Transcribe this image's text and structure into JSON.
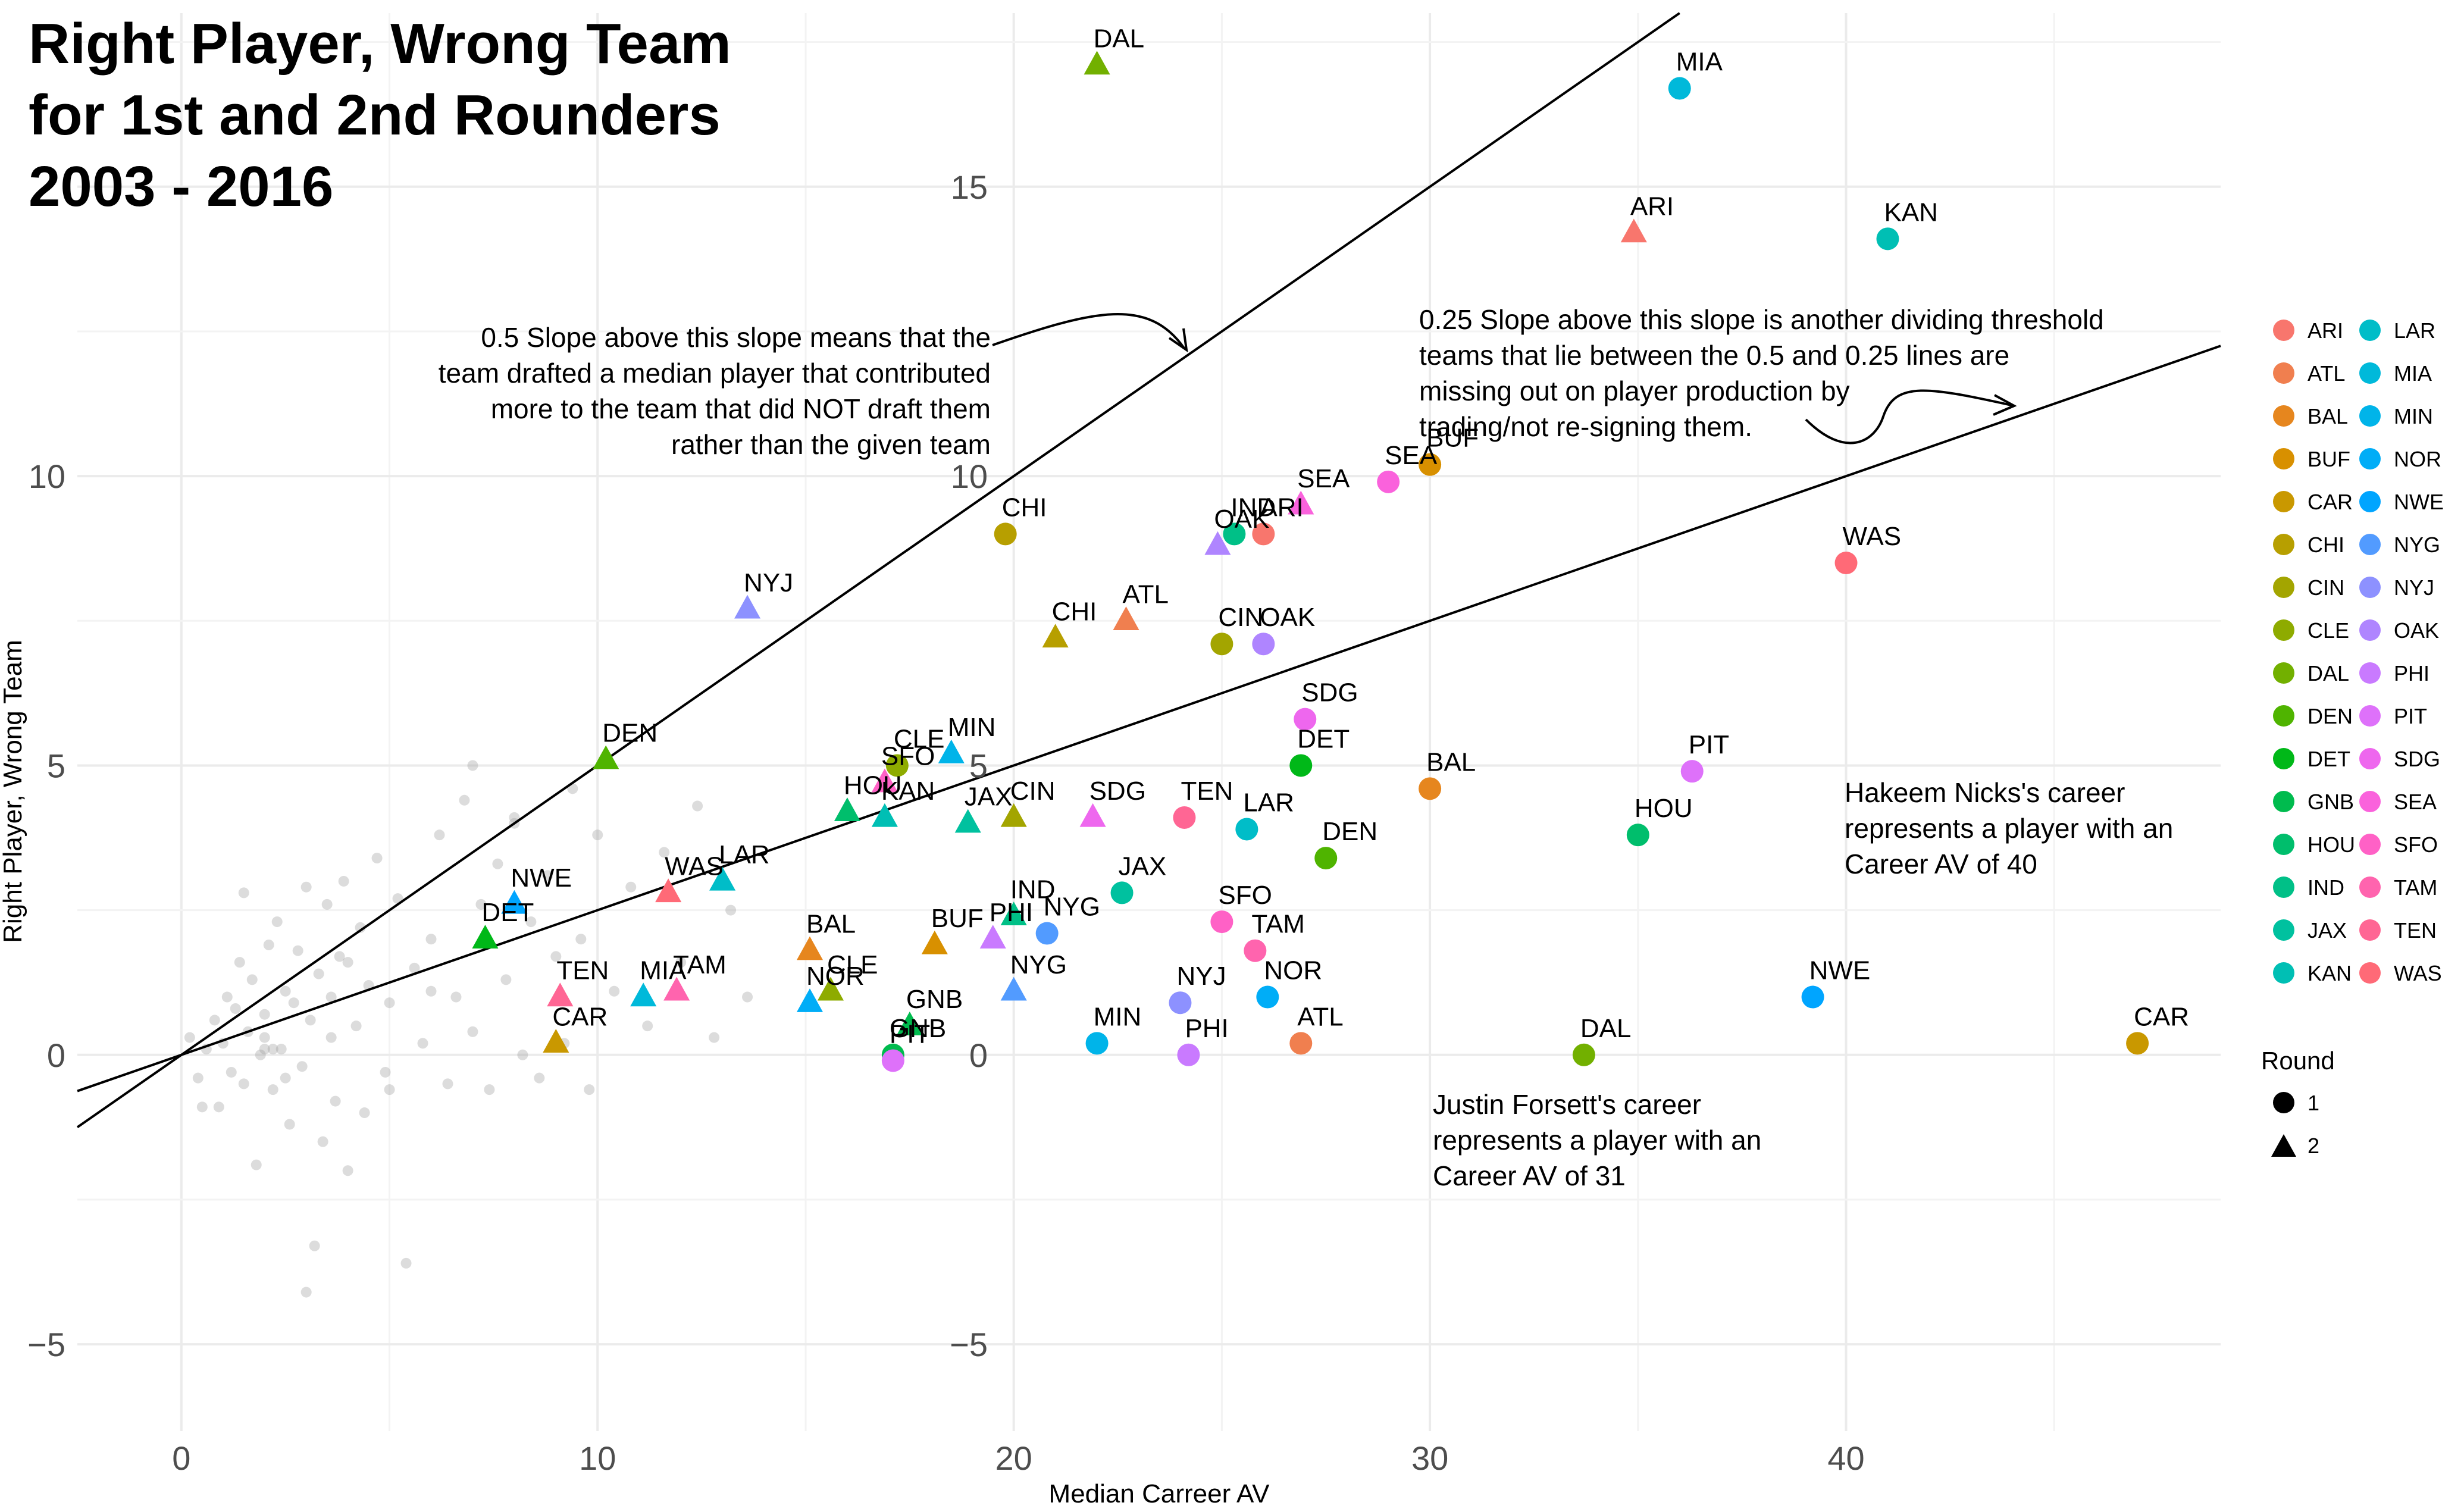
{
  "chart_data": {
    "type": "scatter",
    "title": [
      "Right Player, Wrong Team",
      "for 1st and 2nd Rounders",
      "2003 - 2016"
    ],
    "xlabel": "Median Carreer AV",
    "ylabel": "Right Player, Wrong Team",
    "xlim": [
      -2.5,
      49
    ],
    "ylim": [
      -6.5,
      18
    ],
    "x_ticks": [
      0,
      10,
      20,
      30,
      40
    ],
    "y_ticks": [
      -5,
      0,
      5,
      10,
      15
    ],
    "grid": true,
    "reference_lines": [
      {
        "slope": 0.5,
        "intercept": 0
      },
      {
        "slope": 0.25,
        "intercept": 0
      }
    ],
    "annotations": [
      {
        "lines": [
          "0.5 Slope above this slope means that the",
          "team drafted a median player that contributed",
          "more to the team that did NOT draft them",
          "rather than the given team"
        ]
      },
      {
        "lines": [
          "0.25 Slope above this slope is another dividing threshold",
          "teams that lie between the 0.5 and 0.25 lines are",
          "missing out on player production by",
          "trading/not re-signing them."
        ]
      },
      {
        "lines": [
          "Hakeem Nicks's career",
          "represents a player with an",
          "Career AV of 40"
        ]
      },
      {
        "lines": [
          "Justin Forsett's career",
          "represents a player with an",
          "Career AV of 31"
        ]
      }
    ],
    "team_colors": {
      "ARI": "#F8766D",
      "ATL": "#F07F4F",
      "BAL": "#E6861E",
      "BUF": "#D89000",
      "CAR": "#C99800",
      "CHI": "#B79F00",
      "CIN": "#A3A500",
      "CLE": "#8EAB00",
      "DAL": "#72B000",
      "DEN": "#4FB400",
      "DET": "#00B818",
      "GNB": "#00BB4E",
      "HOU": "#00BE6C",
      "IND": "#00C087",
      "JAX": "#00C19F",
      "KAN": "#00BFB4",
      "LAR": "#00BDC8",
      "MIA": "#00B9DA",
      "MIN": "#00B4E9",
      "NOR": "#00ADF7",
      "NWE": "#00A5FF",
      "NYG": "#529BFF",
      "NYJ": "#8D91FF",
      "OAK": "#AF85FF",
      "PHI": "#C97AFF",
      "PIT": "#DE71FA",
      "SDG": "#EE67EE",
      "SEA": "#FA62DC",
      "SFO": "#FF61C6",
      "TAM": "#FF64AE",
      "TEN": "#FF6694",
      "WAS": "#FF6A77"
    },
    "legend": {
      "teams": [
        "ARI",
        "ATL",
        "BAL",
        "BUF",
        "CAR",
        "CHI",
        "CIN",
        "CLE",
        "DAL",
        "DEN",
        "DET",
        "GNB",
        "HOU",
        "IND",
        "JAX",
        "KAN",
        "LAR",
        "MIA",
        "MIN",
        "NOR",
        "NWE",
        "NYG",
        "NYJ",
        "OAK",
        "PHI",
        "PIT",
        "SDG",
        "SEA",
        "SFO",
        "TAM",
        "TEN",
        "WAS"
      ],
      "round_title": "Round",
      "rounds": [
        {
          "label": "1",
          "shape": "circle"
        },
        {
          "label": "2",
          "shape": "triangle"
        }
      ]
    },
    "points": [
      {
        "team": "MIA",
        "round": 1,
        "x": 36.0,
        "y": 16.7
      },
      {
        "team": "DAL",
        "round": 2,
        "x": 22.0,
        "y": 17.1
      },
      {
        "team": "ARI",
        "round": 2,
        "x": 34.9,
        "y": 14.2
      },
      {
        "team": "KAN",
        "round": 1,
        "x": 41.0,
        "y": 14.1
      },
      {
        "team": "SEA",
        "round": 1,
        "x": 29.0,
        "y": 9.9
      },
      {
        "team": "BUF",
        "round": 1,
        "x": 30.0,
        "y": 10.2
      },
      {
        "team": "SEA",
        "round": 2,
        "x": 26.9,
        "y": 9.5
      },
      {
        "team": "IND",
        "round": 1,
        "x": 25.3,
        "y": 9.0
      },
      {
        "team": "ARI",
        "round": 1,
        "x": 26.0,
        "y": 9.0
      },
      {
        "team": "OAK",
        "round": 2,
        "x": 24.9,
        "y": 8.8
      },
      {
        "team": "CHI",
        "round": 1,
        "x": 19.8,
        "y": 9.0
      },
      {
        "team": "NYJ",
        "round": 2,
        "x": 13.6,
        "y": 7.7
      },
      {
        "team": "WAS",
        "round": 1,
        "x": 40.0,
        "y": 8.5
      },
      {
        "team": "ATL",
        "round": 2,
        "x": 22.7,
        "y": 7.5
      },
      {
        "team": "CHI",
        "round": 2,
        "x": 21.0,
        "y": 7.2
      },
      {
        "team": "CIN",
        "round": 1,
        "x": 25.0,
        "y": 7.1
      },
      {
        "team": "OAK",
        "round": 1,
        "x": 26.0,
        "y": 7.1
      },
      {
        "team": "SDG",
        "round": 1,
        "x": 27.0,
        "y": 5.8
      },
      {
        "team": "DEN",
        "round": 2,
        "x": 10.2,
        "y": 5.1
      },
      {
        "team": "CLE",
        "round": 1,
        "x": 17.2,
        "y": 5.0
      },
      {
        "team": "MIN",
        "round": 2,
        "x": 18.5,
        "y": 5.2
      },
      {
        "team": "SFO",
        "round": 2,
        "x": 16.9,
        "y": 4.7
      },
      {
        "team": "HOU",
        "round": 2,
        "x": 16.0,
        "y": 4.2
      },
      {
        "team": "KAN",
        "round": 2,
        "x": 16.9,
        "y": 4.1
      },
      {
        "team": "JAX",
        "round": 2,
        "x": 18.9,
        "y": 4.0
      },
      {
        "team": "CIN",
        "round": 2,
        "x": 20.0,
        "y": 4.1
      },
      {
        "team": "SDG",
        "round": 2,
        "x": 21.9,
        "y": 4.1
      },
      {
        "team": "DET",
        "round": 1,
        "x": 26.9,
        "y": 5.0
      },
      {
        "team": "BAL",
        "round": 1,
        "x": 30.0,
        "y": 4.6
      },
      {
        "team": "PIT",
        "round": 1,
        "x": 36.3,
        "y": 4.9
      },
      {
        "team": "TEN",
        "round": 1,
        "x": 24.1,
        "y": 4.1
      },
      {
        "team": "LAR",
        "round": 1,
        "x": 25.6,
        "y": 3.9
      },
      {
        "team": "DEN",
        "round": 1,
        "x": 27.5,
        "y": 3.4
      },
      {
        "team": "HOU",
        "round": 1,
        "x": 35.0,
        "y": 3.8
      },
      {
        "team": "LAR",
        "round": 2,
        "x": 13.0,
        "y": 3.0
      },
      {
        "team": "NWE",
        "round": 2,
        "x": 8.0,
        "y": 2.6
      },
      {
        "team": "WAS",
        "round": 2,
        "x": 11.7,
        "y": 2.8
      },
      {
        "team": "DET",
        "round": 2,
        "x": 7.3,
        "y": 2.0
      },
      {
        "team": "JAX",
        "round": 1,
        "x": 22.6,
        "y": 2.8
      },
      {
        "team": "SFO",
        "round": 1,
        "x": 25.0,
        "y": 2.3
      },
      {
        "team": "IND",
        "round": 2,
        "x": 20.0,
        "y": 2.4
      },
      {
        "team": "NYG",
        "round": 1,
        "x": 20.8,
        "y": 2.1
      },
      {
        "team": "BAL",
        "round": 2,
        "x": 15.1,
        "y": 1.8
      },
      {
        "team": "BUF",
        "round": 2,
        "x": 18.1,
        "y": 1.9
      },
      {
        "team": "PHI",
        "round": 2,
        "x": 19.5,
        "y": 2.0
      },
      {
        "team": "TAM",
        "round": 1,
        "x": 25.8,
        "y": 1.8
      },
      {
        "team": "TEN",
        "round": 2,
        "x": 9.1,
        "y": 1.0
      },
      {
        "team": "MIA",
        "round": 2,
        "x": 11.1,
        "y": 1.0
      },
      {
        "team": "TAM",
        "round": 2,
        "x": 11.9,
        "y": 1.1
      },
      {
        "team": "NOR",
        "round": 2,
        "x": 15.1,
        "y": 0.9
      },
      {
        "team": "CLE",
        "round": 2,
        "x": 15.6,
        "y": 1.1
      },
      {
        "team": "NYG",
        "round": 2,
        "x": 20.0,
        "y": 1.1
      },
      {
        "team": "NYJ",
        "round": 1,
        "x": 24.0,
        "y": 0.9
      },
      {
        "team": "NOR",
        "round": 1,
        "x": 26.1,
        "y": 1.0
      },
      {
        "team": "NWE",
        "round": 1,
        "x": 39.2,
        "y": 1.0
      },
      {
        "team": "CAR",
        "round": 2,
        "x": 9.0,
        "y": 0.2
      },
      {
        "team": "GNB",
        "round": 2,
        "x": 17.5,
        "y": 0.5
      },
      {
        "team": "GNB",
        "round": 1,
        "x": 17.1,
        "y": 0.0
      },
      {
        "team": "PIT",
        "round": 1,
        "x": 17.1,
        "y": -0.1
      },
      {
        "team": "MIN",
        "round": 1,
        "x": 22.0,
        "y": 0.2
      },
      {
        "team": "ATL",
        "round": 1,
        "x": 26.9,
        "y": 0.2
      },
      {
        "team": "PHI",
        "round": 1,
        "x": 24.2,
        "y": 0.0
      },
      {
        "team": "DAL",
        "round": 1,
        "x": 33.7,
        "y": 0.0
      },
      {
        "team": "CAR",
        "round": 1,
        "x": 47.0,
        "y": 0.2
      }
    ],
    "background_points": [
      [
        0.2,
        0.3
      ],
      [
        0.4,
        -0.4
      ],
      [
        0.6,
        0.1
      ],
      [
        0.8,
        0.6
      ],
      [
        0.9,
        -0.9
      ],
      [
        1.0,
        0.2
      ],
      [
        1.1,
        1.0
      ],
      [
        1.2,
        -0.3
      ],
      [
        1.3,
        0.8
      ],
      [
        1.4,
        1.6
      ],
      [
        1.5,
        -0.5
      ],
      [
        1.6,
        0.4
      ],
      [
        1.7,
        1.3
      ],
      [
        1.8,
        -1.9
      ],
      [
        1.9,
        0.0
      ],
      [
        2.0,
        0.7
      ],
      [
        2.1,
        1.9
      ],
      [
        2.2,
        -0.6
      ],
      [
        2.3,
        2.3
      ],
      [
        2.4,
        0.1
      ],
      [
        2.5,
        1.1
      ],
      [
        2.6,
        -1.2
      ],
      [
        2.7,
        0.9
      ],
      [
        2.8,
        1.8
      ],
      [
        2.9,
        -0.2
      ],
      [
        3.0,
        2.9
      ],
      [
        3.1,
        0.6
      ],
      [
        3.2,
        -3.3
      ],
      [
        3.3,
        1.4
      ],
      [
        3.4,
        -1.5
      ],
      [
        3.5,
        2.6
      ],
      [
        3.6,
        0.3
      ],
      [
        3.7,
        -0.8
      ],
      [
        3.8,
        1.7
      ],
      [
        3.9,
        3.0
      ],
      [
        4.0,
        -2.0
      ],
      [
        4.2,
        0.5
      ],
      [
        4.3,
        2.2
      ],
      [
        4.4,
        -1.0
      ],
      [
        4.5,
        1.2
      ],
      [
        4.7,
        3.4
      ],
      [
        4.9,
        -0.3
      ],
      [
        5.0,
        0.9
      ],
      [
        5.2,
        2.7
      ],
      [
        5.4,
        -3.6
      ],
      [
        5.6,
        1.5
      ],
      [
        5.8,
        0.2
      ],
      [
        6.0,
        2.0
      ],
      [
        6.2,
        3.8
      ],
      [
        6.4,
        -0.5
      ],
      [
        6.6,
        1.0
      ],
      [
        6.8,
        4.4
      ],
      [
        7.0,
        0.4
      ],
      [
        7.2,
        2.6
      ],
      [
        7.4,
        -0.6
      ],
      [
        7.6,
        3.3
      ],
      [
        7.8,
        1.3
      ],
      [
        8.0,
        4.1
      ],
      [
        8.2,
        0.0
      ],
      [
        8.4,
        2.3
      ],
      [
        8.6,
        -0.4
      ],
      [
        8.8,
        3.1
      ],
      [
        9.0,
        1.7
      ],
      [
        9.2,
        0.2
      ],
      [
        9.4,
        4.6
      ],
      [
        9.6,
        2.0
      ],
      [
        9.8,
        -0.6
      ],
      [
        10.0,
        3.8
      ],
      [
        10.4,
        1.1
      ],
      [
        10.8,
        2.9
      ],
      [
        11.2,
        0.5
      ],
      [
        11.6,
        3.5
      ],
      [
        12.0,
        1.6
      ],
      [
        12.4,
        4.3
      ],
      [
        12.8,
        0.3
      ],
      [
        13.2,
        2.5
      ],
      [
        13.6,
        1.0
      ],
      [
        2.5,
        -0.4
      ],
      [
        1.5,
        2.8
      ],
      [
        3.0,
        -4.1
      ],
      [
        0.5,
        -0.9
      ],
      [
        6.0,
        1.1
      ],
      [
        5.0,
        -0.6
      ],
      [
        4.0,
        1.6
      ],
      [
        2.0,
        0.1
      ],
      [
        2.0,
        0.3
      ],
      [
        2.2,
        0.1
      ],
      [
        3.6,
        1.0
      ],
      [
        8.0,
        4.0
      ],
      [
        7.0,
        5.0
      ]
    ]
  }
}
